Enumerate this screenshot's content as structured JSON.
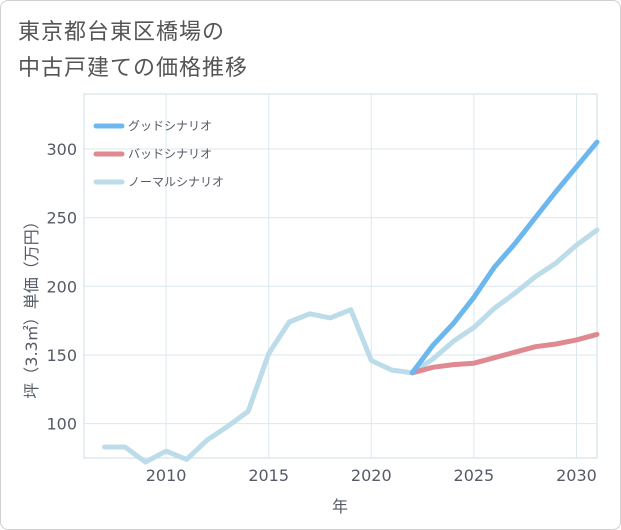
{
  "chart_data": {
    "type": "line",
    "title_line1": "東京都台東区橋場の",
    "title_line2": "中古戸建ての価格推移",
    "xlabel": "年",
    "ylabel": "坪（3.3㎡）単価（万円）",
    "xlim": [
      2006,
      2031
    ],
    "ylim": [
      75,
      340
    ],
    "x_ticks": [
      2010,
      2015,
      2020,
      2025,
      2030
    ],
    "y_ticks": [
      100,
      150,
      200,
      250,
      300
    ],
    "grid": true,
    "legend_position": "top-left",
    "series": [
      {
        "name": "グッドシナリオ",
        "color": "#6cb8ee",
        "x": [
          2022,
          2023,
          2024,
          2025,
          2026,
          2027,
          2028,
          2029,
          2030,
          2031
        ],
        "values": [
          137,
          157,
          173,
          192,
          214,
          231,
          250,
          269,
          287,
          305
        ]
      },
      {
        "name": "バッドシナリオ",
        "color": "#de8a90",
        "x": [
          2022,
          2023,
          2024,
          2025,
          2026,
          2027,
          2028,
          2029,
          2030,
          2031
        ],
        "values": [
          137,
          141,
          143,
          144,
          148,
          152,
          156,
          158,
          161,
          165
        ]
      },
      {
        "name": "ノーマルシナリオ",
        "color": "#bcdcea",
        "x": [
          2007,
          2008,
          2009,
          2010,
          2011,
          2012,
          2013,
          2014,
          2015,
          2016,
          2017,
          2018,
          2019,
          2020,
          2021,
          2022,
          2023,
          2024,
          2025,
          2026,
          2027,
          2028,
          2029,
          2030,
          2031
        ],
        "values": [
          83,
          83,
          72,
          80,
          74,
          88,
          98,
          109,
          151,
          174,
          180,
          177,
          183,
          146,
          139,
          137,
          147,
          160,
          170,
          184,
          195,
          207,
          217,
          230,
          241
        ]
      }
    ]
  }
}
